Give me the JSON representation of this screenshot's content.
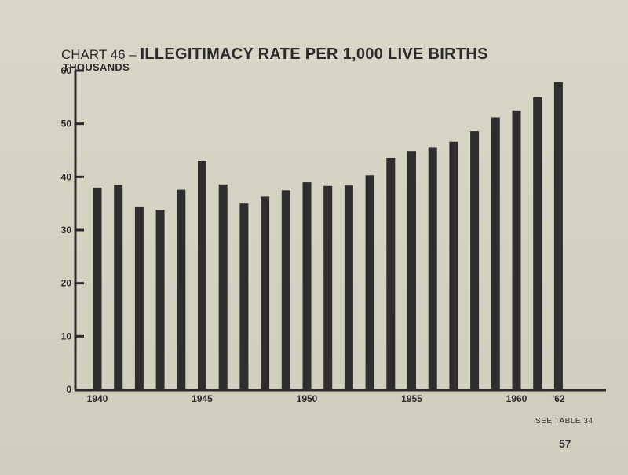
{
  "header": {
    "title_prefix": "CHART 46 – ",
    "title_main": "ILLEGITIMACY RATE PER 1,000 LIVE BIRTHS",
    "unit_label": "THOUSANDS"
  },
  "chart_data": {
    "type": "bar",
    "title": "CHART 46 – ILLEGITIMACY RATE PER 1,000 LIVE BIRTHS",
    "ylabel": "THOUSANDS",
    "xlabel": "",
    "ylim": [
      0,
      60
    ],
    "yticks": [
      0,
      10,
      20,
      30,
      40,
      50,
      60
    ],
    "categories": [
      "1940",
      "1941",
      "1942",
      "1943",
      "1944",
      "1945",
      "1946",
      "1947",
      "1948",
      "1949",
      "1950",
      "1951",
      "1952",
      "1953",
      "1954",
      "1955",
      "1956",
      "1957",
      "1958",
      "1959",
      "1960",
      "1961",
      "1962"
    ],
    "values": [
      38.0,
      38.5,
      34.3,
      33.8,
      37.6,
      43.0,
      38.6,
      35.0,
      36.3,
      37.5,
      39.0,
      38.3,
      38.4,
      40.3,
      43.6,
      44.9,
      45.6,
      46.6,
      48.6,
      51.2,
      52.5,
      55.0,
      57.8
    ],
    "xtick_labels": [
      {
        "index": 0,
        "label": "1940"
      },
      {
        "index": 5,
        "label": "1945"
      },
      {
        "index": 10,
        "label": "1950"
      },
      {
        "index": 15,
        "label": "1955"
      },
      {
        "index": 20,
        "label": "1960"
      },
      {
        "index": 22,
        "label": "'62"
      }
    ],
    "grid": false,
    "bar_color": "#2e2e2e"
  },
  "footer": {
    "source_note": "SEE TABLE 34",
    "page_number": "57"
  }
}
